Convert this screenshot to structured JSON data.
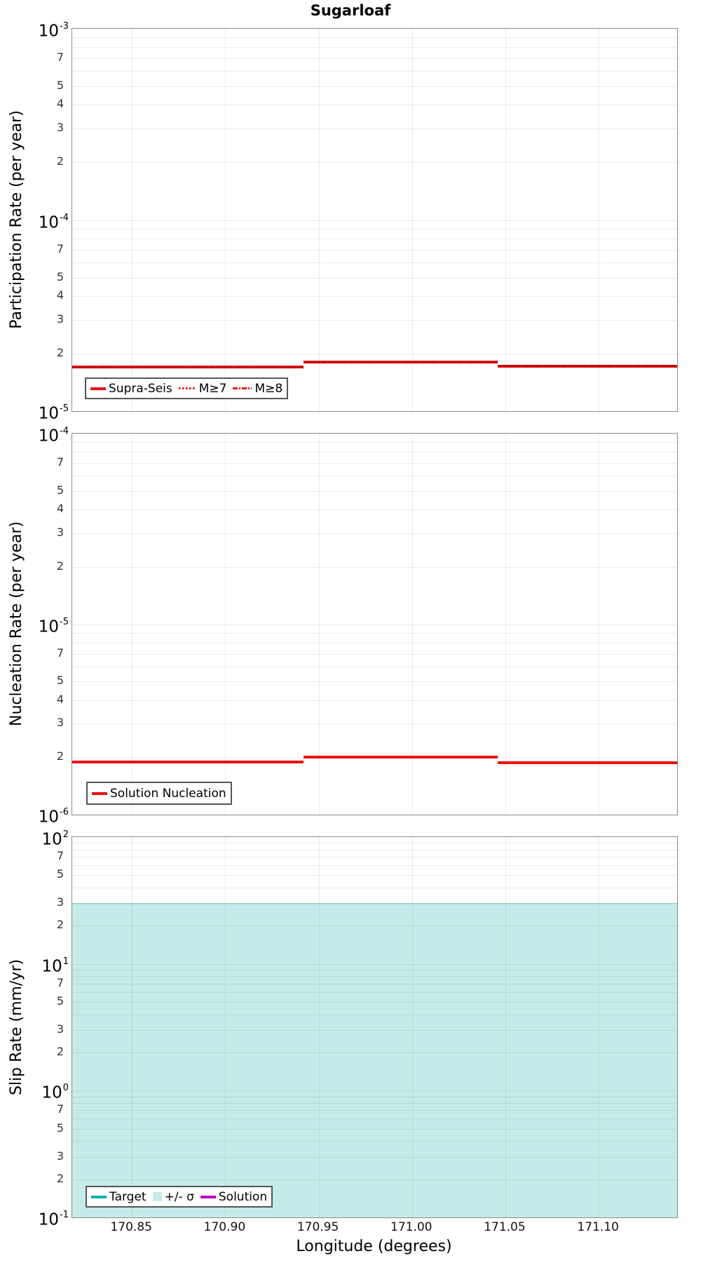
{
  "title": "Sugarloaf",
  "x_axis": {
    "label": "Longitude (degrees)",
    "range": [
      170.818,
      171.142
    ],
    "tick_values": [
      170.85,
      170.9,
      170.95,
      171.0,
      171.05,
      171.1
    ],
    "tick_labels": [
      "170.85",
      "170.90",
      "170.95",
      "171.00",
      "171.05",
      "171.10"
    ]
  },
  "colors": {
    "series_red": "#EE1111",
    "target_teal": "#00B2AC",
    "solution_magenta": "#BF00BF",
    "sigma_band_cyan": "#C4EBE9",
    "sigma_band_edge": "#A8DEDB"
  },
  "panels": [
    {
      "ylabel": "Participation Rate (per year)",
      "y_axis": {
        "top_exponent": -3,
        "bottom_exponent": -5,
        "decade_labels": [
          "10^-3",
          "10^-4",
          "10^-5"
        ],
        "minor_tick_labels": [
          7,
          5,
          4,
          3,
          2
        ]
      },
      "legend": {
        "items": [
          {
            "label": "Supra-Seis",
            "swatch": "line-solid",
            "color": "#EE1111"
          },
          {
            "label": "M≥7",
            "swatch": "line-dotted",
            "color": "#EE1111"
          },
          {
            "label": "M≥8",
            "swatch": "line-dash-dot",
            "color": "#EE1111"
          }
        ]
      }
    },
    {
      "ylabel": "Nucleation Rate (per year)",
      "y_axis": {
        "top_exponent": -4,
        "bottom_exponent": -6,
        "decade_labels": [
          "10^-4",
          "10^-5",
          "10^-6"
        ],
        "minor_tick_labels": [
          7,
          5,
          4,
          3,
          2
        ]
      },
      "legend": {
        "items": [
          {
            "label": "Solution Nucleation",
            "swatch": "line-solid",
            "color": "#EE1111"
          }
        ]
      }
    },
    {
      "ylabel": "Slip Rate (mm/yr)",
      "y_axis": {
        "top_exponent": 2,
        "bottom_exponent": -1,
        "decade_labels": [
          "10^2",
          "10^1",
          "10^0",
          "10^-1"
        ],
        "minor_tick_labels": [
          7,
          5,
          3,
          2
        ]
      },
      "legend": {
        "items": [
          {
            "label": "Target",
            "swatch": "line-solid",
            "color": "#00B2AC"
          },
          {
            "label": "+/- σ",
            "swatch": "patch",
            "color": "#C4EBE9"
          },
          {
            "label": "Solution",
            "swatch": "line-solid",
            "color": "#BF00BF"
          }
        ]
      }
    }
  ],
  "chart_data": [
    {
      "type": "line",
      "panel": "participation-rate",
      "y_scale": "log",
      "ylabel": "Participation Rate (per year)",
      "ylim": [
        1e-05,
        0.001
      ],
      "xlim": [
        170.818,
        171.142
      ],
      "grid": true,
      "legend_position": "bottom-left",
      "series": [
        {
          "name": "Supra-Seis",
          "color": "#EE1111",
          "line_style": "solid",
          "steps": [
            {
              "x_start": 170.818,
              "x_end": 170.942,
              "rate": 1.7e-05
            },
            {
              "x_start": 170.942,
              "x_end": 171.046,
              "rate": 1.8e-05
            },
            {
              "x_start": 171.046,
              "x_end": 171.142,
              "rate": 1.72e-05
            }
          ]
        },
        {
          "name": "M≥7",
          "color": "#EE1111",
          "line_style": "dotted",
          "coincident_with": "Supra-Seis",
          "steps": [
            {
              "x_start": 170.818,
              "x_end": 170.942,
              "rate": 1.7e-05
            },
            {
              "x_start": 170.942,
              "x_end": 171.046,
              "rate": 1.8e-05
            },
            {
              "x_start": 171.046,
              "x_end": 171.142,
              "rate": 1.72e-05
            }
          ]
        },
        {
          "name": "M≥8",
          "color": "#EE1111",
          "line_style": "dash-dot",
          "coincident_with": "Supra-Seis",
          "steps": [
            {
              "x_start": 170.818,
              "x_end": 170.942,
              "rate": 1.7e-05
            },
            {
              "x_start": 170.942,
              "x_end": 171.046,
              "rate": 1.8e-05
            },
            {
              "x_start": 171.046,
              "x_end": 171.142,
              "rate": 1.72e-05
            }
          ]
        }
      ]
    },
    {
      "type": "line",
      "panel": "nucleation-rate",
      "y_scale": "log",
      "ylabel": "Nucleation Rate (per year)",
      "ylim": [
        1e-06,
        0.0001
      ],
      "xlim": [
        170.818,
        171.142
      ],
      "grid": true,
      "legend_position": "bottom-left",
      "series": [
        {
          "name": "Solution Nucleation",
          "color": "#EE1111",
          "line_style": "solid",
          "steps": [
            {
              "x_start": 170.818,
              "x_end": 170.942,
              "rate": 1.89e-06
            },
            {
              "x_start": 170.942,
              "x_end": 171.046,
              "rate": 2e-06
            },
            {
              "x_start": 171.046,
              "x_end": 171.142,
              "rate": 1.88e-06
            }
          ]
        }
      ]
    },
    {
      "type": "area",
      "panel": "slip-rate",
      "y_scale": "log",
      "ylabel": "Slip Rate (mm/yr)",
      "ylim": [
        0.1,
        100
      ],
      "xlim": [
        170.818,
        171.142
      ],
      "grid": true,
      "legend_position": "bottom-left",
      "band": {
        "name": "+/- σ",
        "color": "#C4EBE9",
        "upper": 30,
        "lower": 0.1,
        "lower_clipped_at_plot_bottom": true,
        "x_start": 170.818,
        "x_end": 171.142
      },
      "series": [
        {
          "name": "Target",
          "color": "#00B2AC",
          "line_style": "solid",
          "visible_in_plot": false
        },
        {
          "name": "Solution",
          "color": "#BF00BF",
          "line_style": "solid",
          "visible_in_plot": false
        }
      ]
    }
  ]
}
